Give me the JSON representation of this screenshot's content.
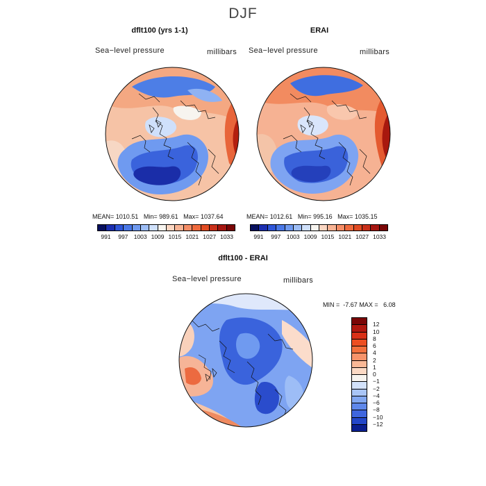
{
  "figure": {
    "title": "DJF",
    "variable_label": "Sea−level pressure",
    "units_label": "millibars"
  },
  "panels": {
    "model": {
      "title": "dflt100 (yrs 1-1)",
      "mean_label": "MEAN=",
      "mean_value": "1010.51",
      "min_label": "Min=",
      "min_value": "989.61",
      "max_label": "Max=",
      "max_value": "1037.64"
    },
    "obs": {
      "title": "ERAI",
      "mean_label": "MEAN=",
      "mean_value": "1012.61",
      "min_label": "Min=",
      "min_value": "995.16",
      "max_label": "Max=",
      "max_value": "1035.15"
    },
    "diff": {
      "title": "dflt100 - ERAI",
      "min_label": "MIN =",
      "min_value": "-7.67",
      "max_label": "MAX =",
      "max_value": "6.08"
    }
  },
  "colorbar_abs": {
    "colors": [
      "#08105e",
      "#1c2fb0",
      "#2f56d8",
      "#4a78e6",
      "#6f9af0",
      "#9dbdf6",
      "#cfe0fb",
      "#f7f4ef",
      "#fbd6c2",
      "#f8b394",
      "#f58d66",
      "#ef6a3d",
      "#e14b22",
      "#c9301a",
      "#a51610",
      "#7a0606"
    ],
    "ticks": [
      "991",
      "997",
      "1003",
      "1009",
      "1015",
      "1021",
      "1027",
      "1033"
    ]
  },
  "colorbar_diff": {
    "colors": [
      "#7a0606",
      "#b0180f",
      "#d93117",
      "#ec4f22",
      "#f2703d",
      "#f6936a",
      "#f9b896",
      "#fbd9c4",
      "#f7f4ef",
      "#d3e2fb",
      "#a9c5f6",
      "#82a7f0",
      "#5f88ea",
      "#3f66de",
      "#2447c8",
      "#0b1f8f"
    ],
    "ticks": [
      "12",
      "10",
      "8",
      "6",
      "4",
      "2",
      "1",
      "0",
      "−1",
      "−2",
      "−4",
      "−6",
      "−8",
      "−10",
      "−12"
    ]
  }
}
